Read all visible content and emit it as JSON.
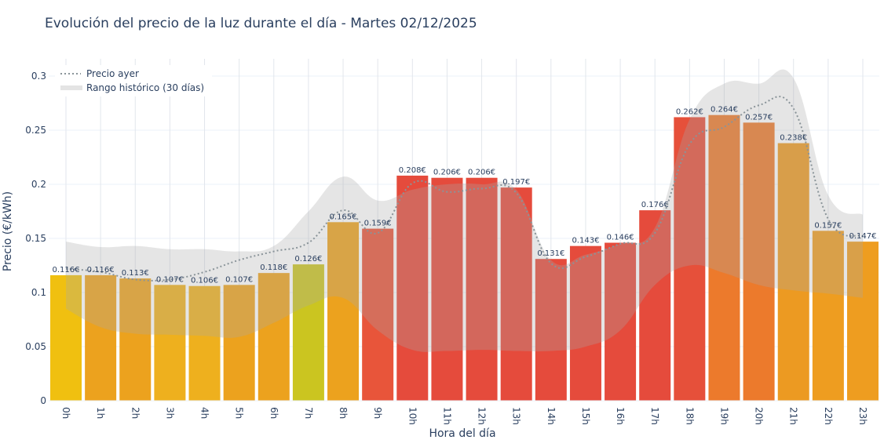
{
  "chart_data": {
    "type": "bar",
    "title": "Evolución del precio de la luz durante el día - Martes 02/12/2025",
    "xlabel": "Hora del día",
    "ylabel": "Precio (€/kWh)",
    "ylim": [
      0,
      0.315
    ],
    "yticks": [
      "0",
      "0.05",
      "0.1",
      "0.15",
      "0.2",
      "0.25",
      "0.3"
    ],
    "ytick_values": [
      0,
      0.05,
      0.1,
      0.15,
      0.2,
      0.25,
      0.3
    ],
    "grid": true,
    "legend_position": "top-left",
    "categories": [
      "0h",
      "1h",
      "2h",
      "3h",
      "4h",
      "5h",
      "6h",
      "7h",
      "8h",
      "9h",
      "10h",
      "11h",
      "12h",
      "13h",
      "14h",
      "15h",
      "16h",
      "17h",
      "18h",
      "19h",
      "20h",
      "21h",
      "22h",
      "23h"
    ],
    "values": [
      0.116,
      0.116,
      0.113,
      0.107,
      0.106,
      0.107,
      0.118,
      0.126,
      0.165,
      0.159,
      0.208,
      0.206,
      0.206,
      0.197,
      0.131,
      0.143,
      0.146,
      0.176,
      0.262,
      0.264,
      0.257,
      0.238,
      0.157,
      0.147
    ],
    "data_labels": [
      "0.116€",
      "0.116€",
      "0.113€",
      "0.107€",
      "0.106€",
      "0.107€",
      "0.118€",
      "0.126€",
      "0.165€",
      "0.159€",
      "0.208€",
      "0.206€",
      "0.206€",
      "0.197€",
      "0.131€",
      "0.143€",
      "0.146€",
      "0.176€",
      "0.262€",
      "0.264€",
      "0.257€",
      "0.238€",
      "0.157€",
      "0.147€"
    ],
    "bar_colors": [
      "#f0c010",
      "#eca21e",
      "#eca21e",
      "#eeb01e",
      "#eeb01e",
      "#eca21e",
      "#eca21e",
      "#cbc520",
      "#eca21e",
      "#e8553a",
      "#e54b3c",
      "#e54b3c",
      "#e54b3c",
      "#e54b3c",
      "#e54b3c",
      "#e54b3c",
      "#e54b3c",
      "#e54b3c",
      "#e6503a",
      "#ec7a2c",
      "#ec7a2c",
      "#ec9a22",
      "#ee9d20",
      "#ee9d20"
    ],
    "series": [
      {
        "name": "Precio ayer",
        "type": "line",
        "style": "dotted",
        "color": "#8a9499",
        "values": [
          0.122,
          0.119,
          0.112,
          0.112,
          0.119,
          0.13,
          0.138,
          0.146,
          0.176,
          0.155,
          0.201,
          0.193,
          0.196,
          0.192,
          0.127,
          0.133,
          0.145,
          0.155,
          0.237,
          0.253,
          0.273,
          0.27,
          0.168,
          0.152
        ]
      },
      {
        "name": "Rango histórico (30 días)",
        "type": "band",
        "color": "#c8c8c8",
        "upper": [
          0.147,
          0.142,
          0.143,
          0.14,
          0.14,
          0.138,
          0.143,
          0.175,
          0.207,
          0.185,
          0.195,
          0.2,
          0.2,
          0.195,
          0.13,
          0.135,
          0.145,
          0.16,
          0.26,
          0.293,
          0.293,
          0.298,
          0.19,
          0.172
        ],
        "lower": [
          0.085,
          0.068,
          0.062,
          0.061,
          0.06,
          0.059,
          0.072,
          0.088,
          0.095,
          0.065,
          0.047,
          0.046,
          0.047,
          0.046,
          0.046,
          0.05,
          0.065,
          0.107,
          0.125,
          0.118,
          0.107,
          0.102,
          0.099,
          0.095
        ]
      }
    ]
  }
}
